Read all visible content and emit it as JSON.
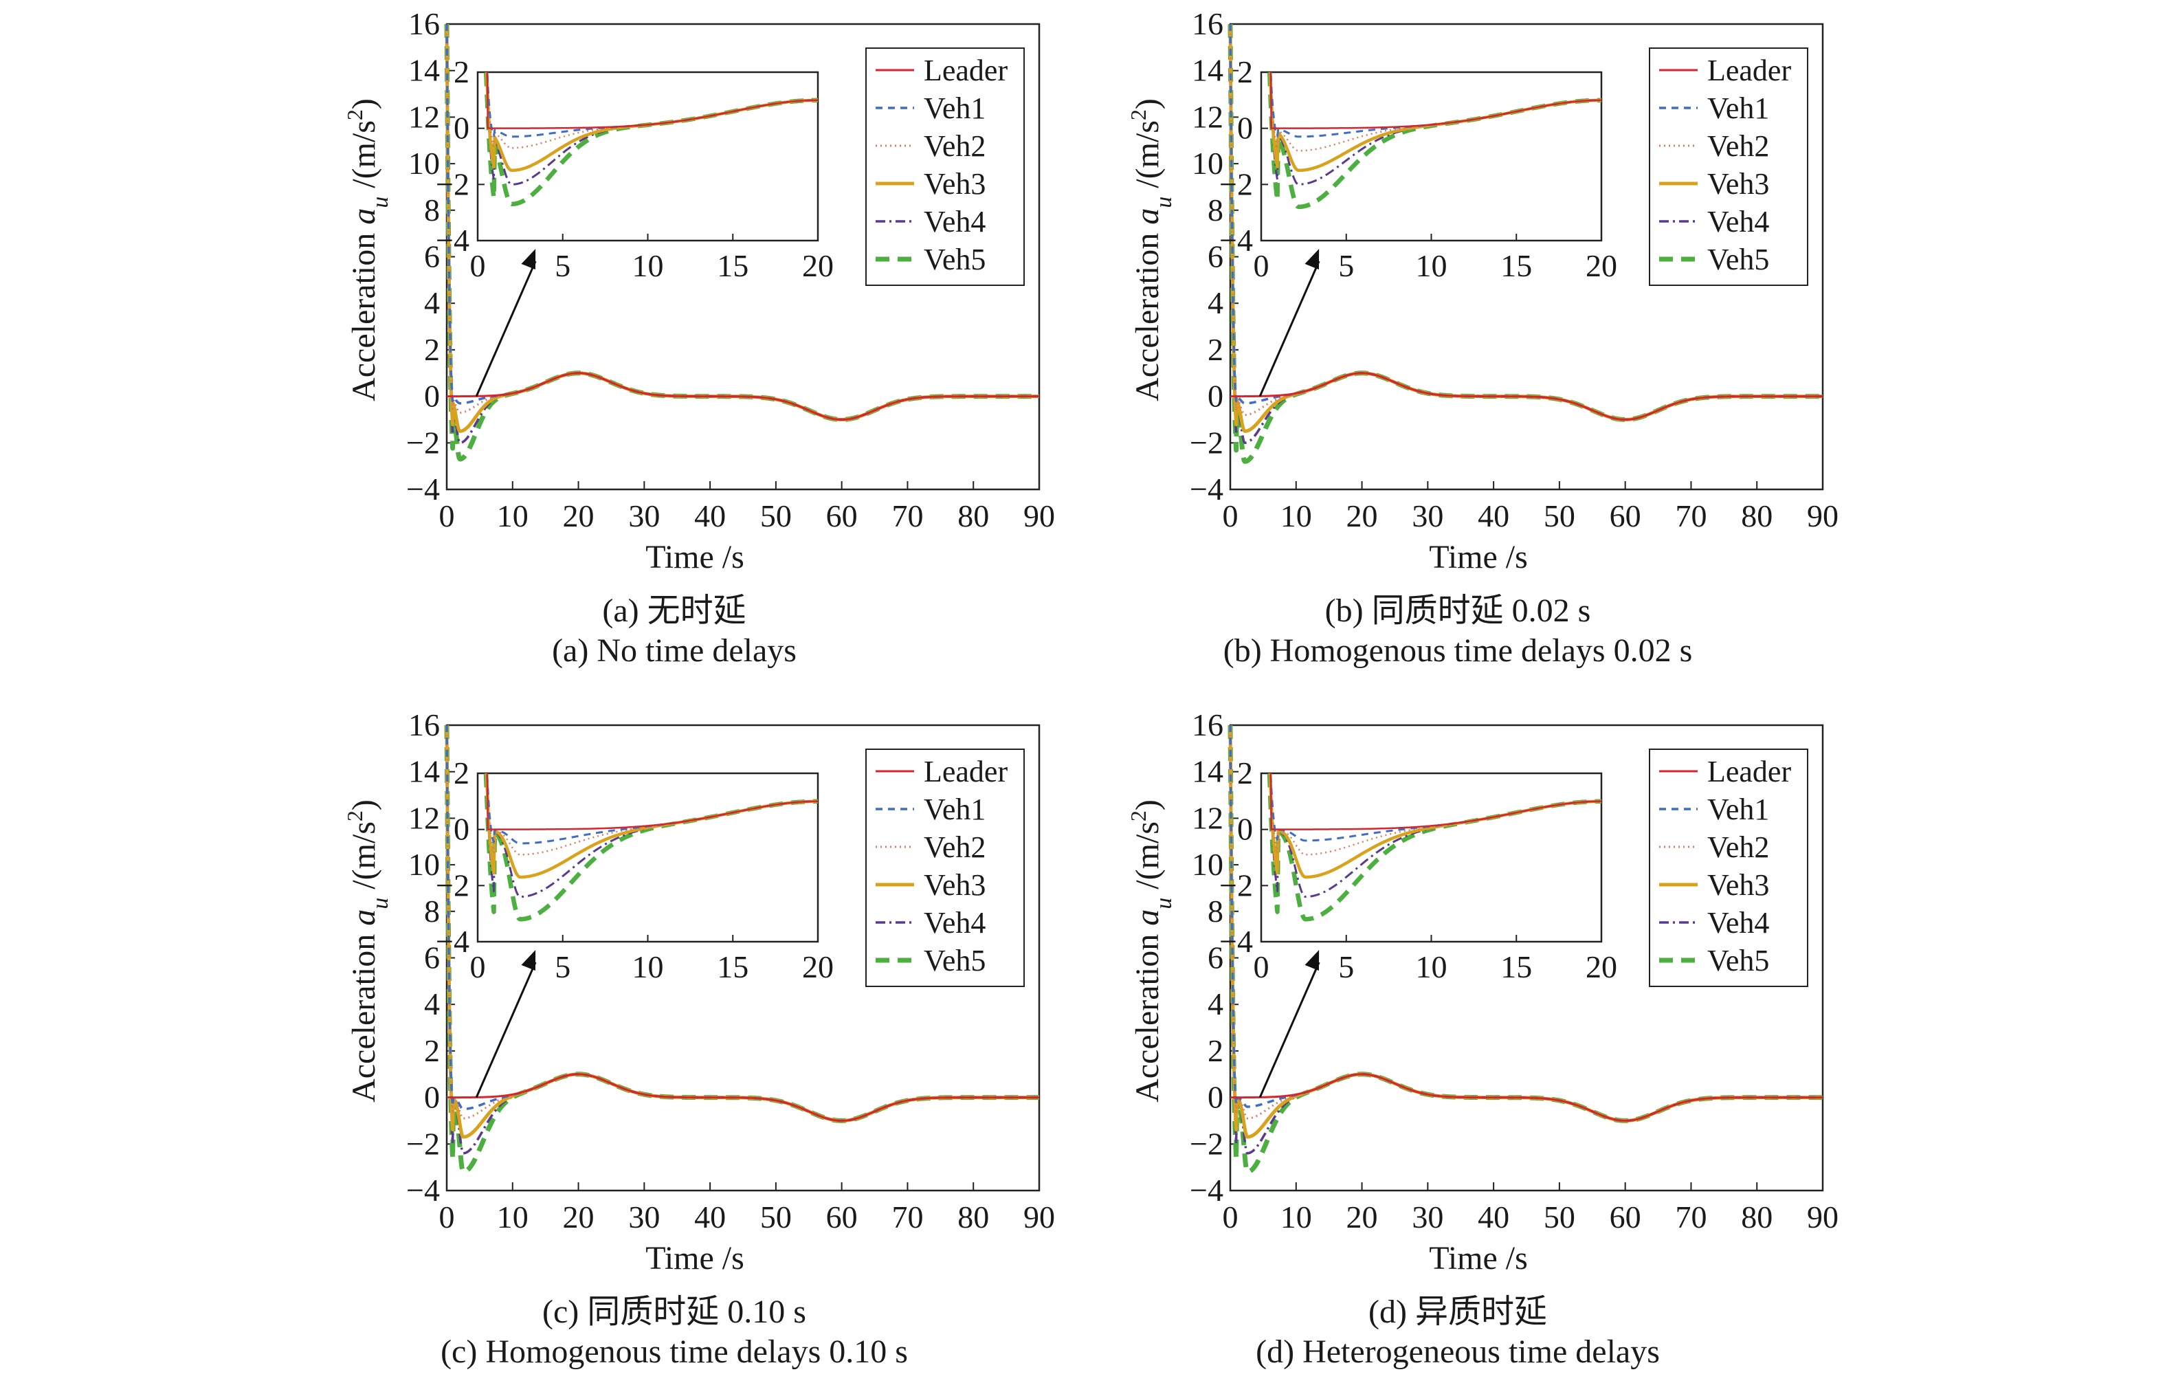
{
  "chart_data": [
    {
      "type": "line",
      "caption_cn": "(a) 无时延",
      "caption_en": "(a) No time delays",
      "xlabel": "Time /s",
      "ylabel": "Acceleration a_u /(m/s²)",
      "ylabel_main": "Acceleration ",
      "ylabel_var": "a",
      "ylabel_sub": "u",
      "ylabel_unit": " /(m/s",
      "ylabel_sup": "2",
      "ylabel_close": ")",
      "xlim": [
        0,
        90
      ],
      "ylim": [
        -4,
        16
      ],
      "xticks": [
        0,
        10,
        20,
        30,
        40,
        50,
        60,
        70,
        80,
        90
      ],
      "yticks": [
        -4,
        -2,
        0,
        2,
        4,
        6,
        8,
        10,
        12,
        14,
        16
      ],
      "inset": {
        "xlim": [
          0,
          20
        ],
        "ylim": [
          -4,
          2
        ],
        "xticks": [
          0,
          5,
          10,
          15,
          20
        ],
        "yticks": [
          -4,
          -2,
          0,
          2
        ]
      },
      "series": [
        {
          "name": "Leader",
          "color": "#d6262b",
          "style": "solid",
          "min_value": 0
        },
        {
          "name": "Veh1",
          "color": "#3f6fc4",
          "style": "dashed",
          "min_value": -0.3
        },
        {
          "name": "Veh2",
          "color": "#e07a5f",
          "style": "dotted",
          "min_value": -0.7
        },
        {
          "name": "Veh3",
          "color": "#d9a21c",
          "style": "solid-thick",
          "min_value": -1.5
        },
        {
          "name": "Veh4",
          "color": "#5b3a8e",
          "style": "dashdot",
          "min_value": -2.0
        },
        {
          "name": "Veh5",
          "color": "#4caf3f",
          "style": "dashed-thick",
          "min_value": -2.7
        }
      ],
      "transient": {
        "t_min": 2.0,
        "t_settle": 8
      }
    },
    {
      "type": "line",
      "caption_cn": "(b) 同质时延 0.02 s",
      "caption_en": "(b) Homogenous time delays 0.02 s",
      "xlabel": "Time /s",
      "ylabel": "Acceleration a_u /(m/s²)",
      "ylabel_main": "Acceleration ",
      "ylabel_var": "a",
      "ylabel_sub": "u",
      "ylabel_unit": " /(m/s",
      "ylabel_sup": "2",
      "ylabel_close": ")",
      "xlim": [
        0,
        90
      ],
      "ylim": [
        -4,
        16
      ],
      "xticks": [
        0,
        10,
        20,
        30,
        40,
        50,
        60,
        70,
        80,
        90
      ],
      "yticks": [
        -4,
        -2,
        0,
        2,
        4,
        6,
        8,
        10,
        12,
        14,
        16
      ],
      "inset": {
        "xlim": [
          0,
          20
        ],
        "ylim": [
          -4,
          2
        ],
        "xticks": [
          0,
          5,
          10,
          15,
          20
        ],
        "yticks": [
          -4,
          -2,
          0,
          2
        ]
      },
      "series": [
        {
          "name": "Leader",
          "color": "#d6262b",
          "style": "solid",
          "min_value": 0
        },
        {
          "name": "Veh1",
          "color": "#3f6fc4",
          "style": "dashed",
          "min_value": -0.3
        },
        {
          "name": "Veh2",
          "color": "#e07a5f",
          "style": "dotted",
          "min_value": -0.8
        },
        {
          "name": "Veh3",
          "color": "#d9a21c",
          "style": "solid-thick",
          "min_value": -1.5
        },
        {
          "name": "Veh4",
          "color": "#5b3a8e",
          "style": "dashdot",
          "min_value": -2.0
        },
        {
          "name": "Veh5",
          "color": "#4caf3f",
          "style": "dashed-thick",
          "min_value": -2.8
        }
      ],
      "transient": {
        "t_min": 2.2,
        "t_settle": 9
      }
    },
    {
      "type": "line",
      "caption_cn": "(c) 同质时延 0.10 s",
      "caption_en": "(c) Homogenous time delays 0.10 s",
      "xlabel": "Time /s",
      "ylabel": "Acceleration a_u /(m/s²)",
      "ylabel_main": "Acceleration ",
      "ylabel_var": "a",
      "ylabel_sub": "u",
      "ylabel_unit": " /(m/s",
      "ylabel_sup": "2",
      "ylabel_close": ")",
      "xlim": [
        0,
        90
      ],
      "ylim": [
        -4,
        16
      ],
      "xticks": [
        0,
        10,
        20,
        30,
        40,
        50,
        60,
        70,
        80,
        90
      ],
      "yticks": [
        -4,
        -2,
        0,
        2,
        4,
        6,
        8,
        10,
        12,
        14,
        16
      ],
      "inset": {
        "xlim": [
          0,
          20
        ],
        "ylim": [
          -4,
          2
        ],
        "xticks": [
          0,
          5,
          10,
          15,
          20
        ],
        "yticks": [
          -4,
          -2,
          0,
          2
        ]
      },
      "series": [
        {
          "name": "Leader",
          "color": "#d6262b",
          "style": "solid",
          "min_value": 0
        },
        {
          "name": "Veh1",
          "color": "#3f6fc4",
          "style": "dashed",
          "min_value": -0.5
        },
        {
          "name": "Veh2",
          "color": "#e07a5f",
          "style": "dotted",
          "min_value": -0.9
        },
        {
          "name": "Veh3",
          "color": "#d9a21c",
          "style": "solid-thick",
          "min_value": -1.7
        },
        {
          "name": "Veh4",
          "color": "#5b3a8e",
          "style": "dashdot",
          "min_value": -2.4
        },
        {
          "name": "Veh5",
          "color": "#4caf3f",
          "style": "dashed-thick",
          "min_value": -3.2
        }
      ],
      "transient": {
        "t_min": 2.5,
        "t_settle": 10
      }
    },
    {
      "type": "line",
      "caption_cn": "(d) 异质时延",
      "caption_en": "(d) Heterogeneous time delays",
      "xlabel": "Time /s",
      "ylabel": "Acceleration a_u /(m/s²)",
      "ylabel_main": "Acceleration ",
      "ylabel_var": "a",
      "ylabel_sub": "u",
      "ylabel_unit": " /(m/s",
      "ylabel_sup": "2",
      "ylabel_close": ")",
      "xlim": [
        0,
        90
      ],
      "ylim": [
        -4,
        16
      ],
      "xticks": [
        0,
        10,
        20,
        30,
        40,
        50,
        60,
        70,
        80,
        90
      ],
      "yticks": [
        -4,
        -2,
        0,
        2,
        4,
        6,
        8,
        10,
        12,
        14,
        16
      ],
      "inset": {
        "xlim": [
          0,
          20
        ],
        "ylim": [
          -4,
          2
        ],
        "xticks": [
          0,
          5,
          10,
          15,
          20
        ],
        "yticks": [
          -4,
          -2,
          0,
          2
        ]
      },
      "series": [
        {
          "name": "Leader",
          "color": "#d6262b",
          "style": "solid",
          "min_value": 0
        },
        {
          "name": "Veh1",
          "color": "#3f6fc4",
          "style": "dashed",
          "min_value": -0.4
        },
        {
          "name": "Veh2",
          "color": "#e07a5f",
          "style": "dotted",
          "min_value": -0.9
        },
        {
          "name": "Veh3",
          "color": "#d9a21c",
          "style": "solid-thick",
          "min_value": -1.7
        },
        {
          "name": "Veh4",
          "color": "#5b3a8e",
          "style": "dashdot",
          "min_value": -2.4
        },
        {
          "name": "Veh5",
          "color": "#4caf3f",
          "style": "dashed-thick",
          "min_value": -3.2
        }
      ],
      "transient": {
        "t_min": 2.6,
        "t_settle": 10
      }
    }
  ]
}
